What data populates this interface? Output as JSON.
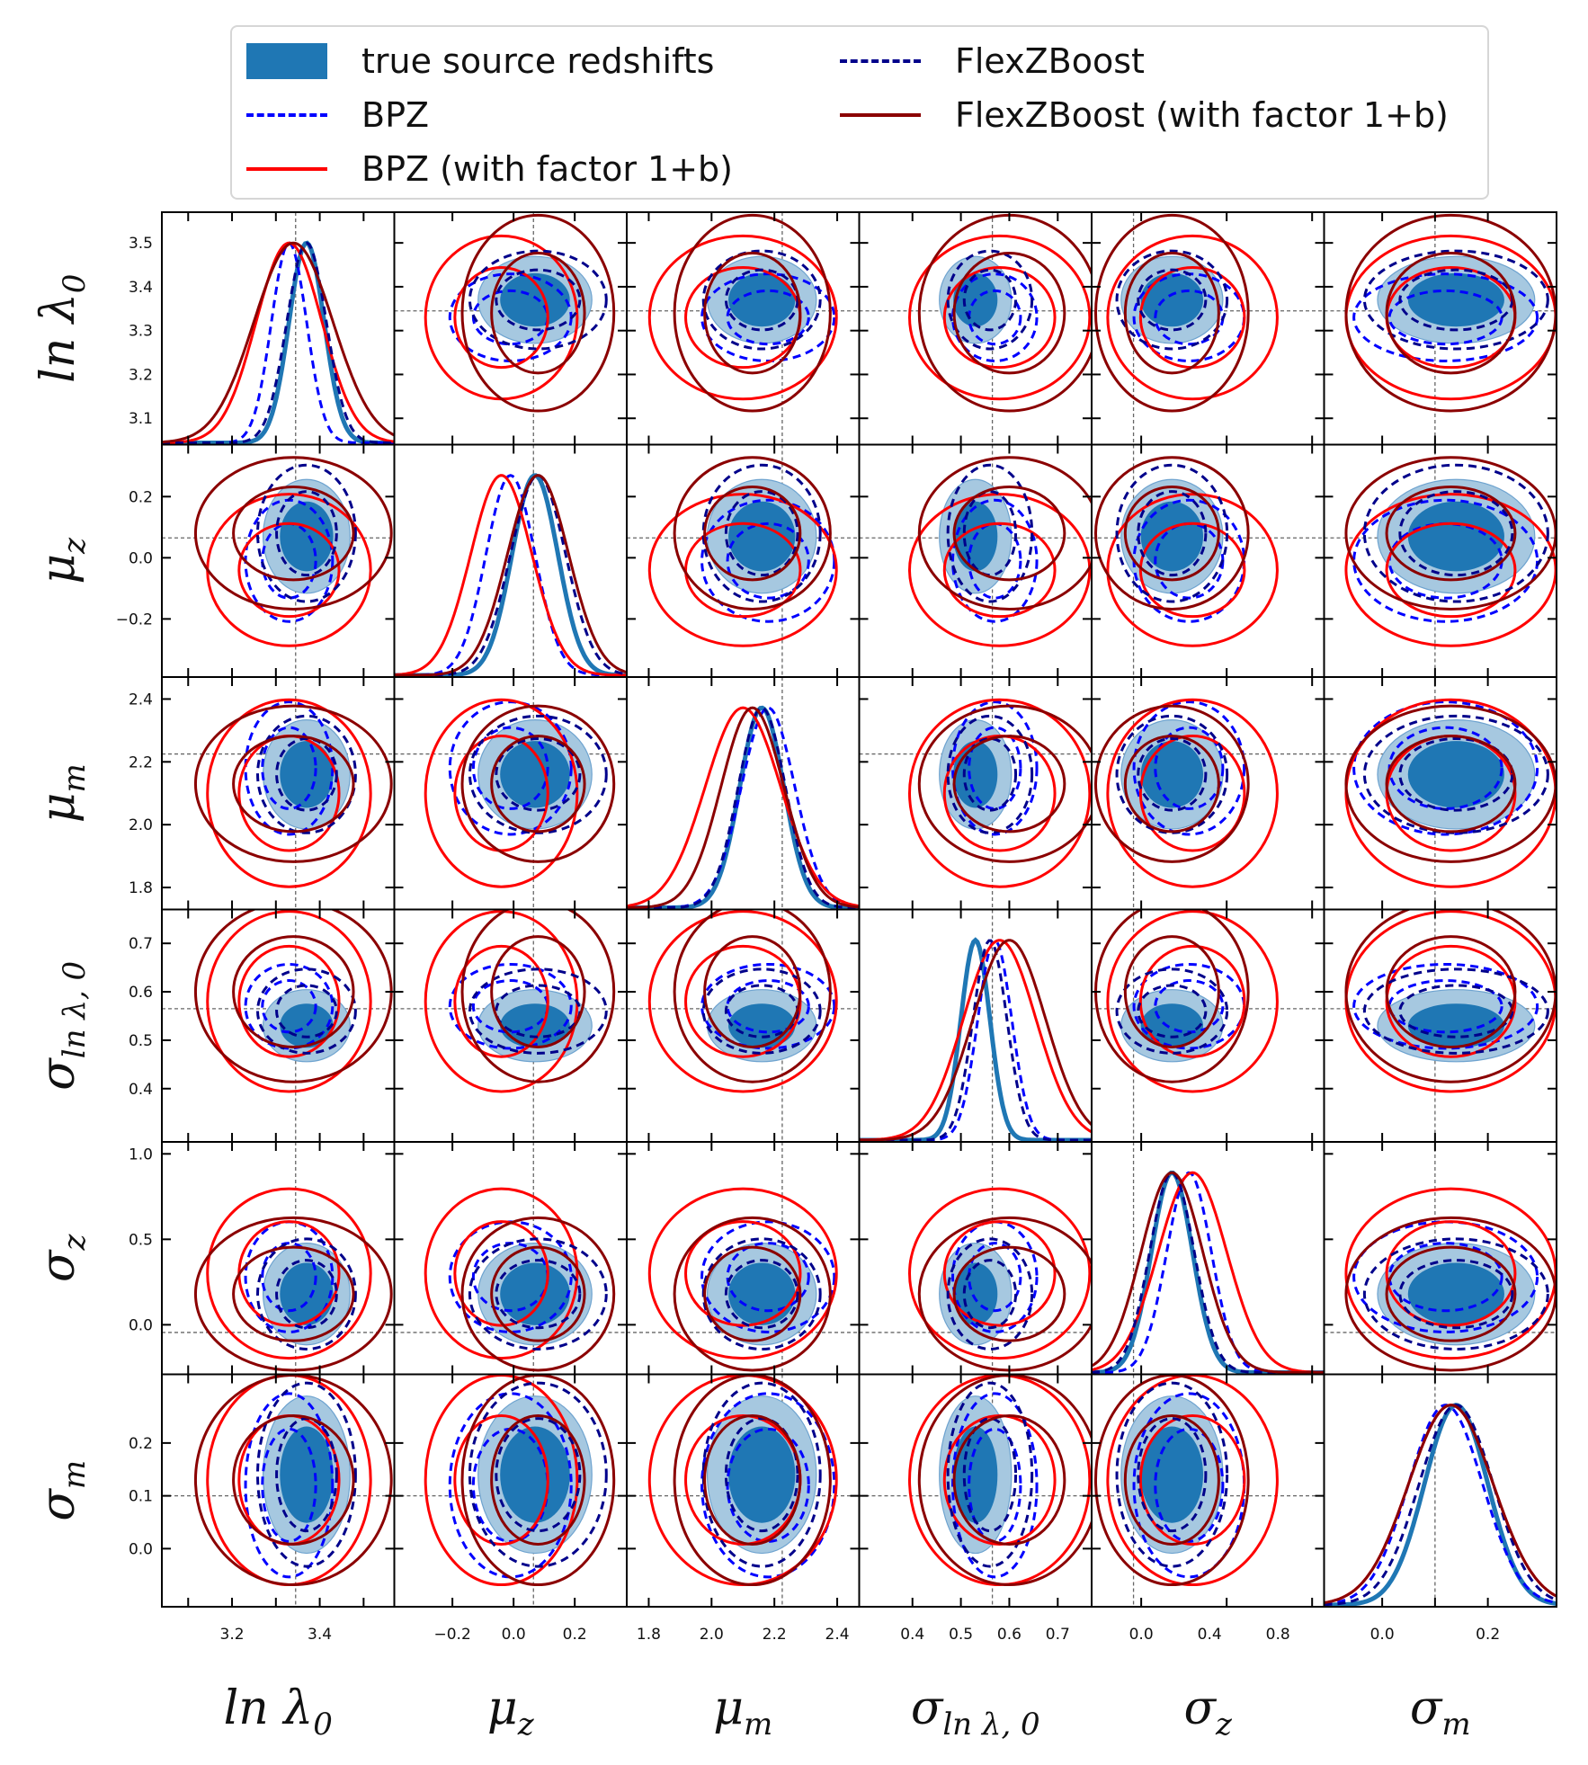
{
  "legend": {
    "items": [
      {
        "label": "true source redshifts",
        "style": "fill",
        "color": "#1f77b4"
      },
      {
        "label": "FlexZBoost",
        "style": "dashed",
        "color": "#00008b"
      },
      {
        "label": "BPZ",
        "style": "dashed",
        "color": "#0000ff"
      },
      {
        "label": "FlexZBoost (with factor 1+b)",
        "style": "solid",
        "color": "#8b0000"
      },
      {
        "label": "BPZ (with factor 1+b)",
        "style": "solid",
        "color": "#ff0000"
      }
    ]
  },
  "chart_data": {
    "type": "corner",
    "parameters": [
      "ln λ0",
      "μz",
      "μm",
      "σlnλ,0",
      "σz",
      "σm"
    ],
    "axis_labels": [
      {
        "base": "ln λ",
        "sub": "0"
      },
      {
        "base": "μ",
        "sub": "z"
      },
      {
        "base": "μ",
        "sub": "m"
      },
      {
        "base": "σ",
        "sub": "ln λ, 0"
      },
      {
        "base": "σ",
        "sub": "z"
      },
      {
        "base": "σ",
        "sub": "m"
      }
    ],
    "ranges": [
      [
        3.04,
        3.57
      ],
      [
        -0.39,
        0.37
      ],
      [
        1.73,
        2.47
      ],
      [
        0.29,
        0.77
      ],
      [
        -0.29,
        1.07
      ],
      [
        -0.11,
        0.33
      ]
    ],
    "ticks": [
      [
        3.1,
        3.2,
        3.3,
        3.4,
        3.5
      ],
      [
        -0.2,
        0.0,
        0.2
      ],
      [
        1.8,
        2.0,
        2.2,
        2.4
      ],
      [
        0.4,
        0.5,
        0.6,
        0.7
      ],
      [
        0.0,
        0.5,
        1.0
      ],
      [
        0.0,
        0.1,
        0.2
      ]
    ],
    "xticks": [
      [
        3.2,
        3.4
      ],
      [
        -0.2,
        0.0,
        0.2
      ],
      [
        1.8,
        2.0,
        2.2,
        2.4
      ],
      [
        0.4,
        0.5,
        0.6,
        0.7
      ],
      [
        0.0,
        0.4,
        0.8
      ],
      [
        0.0,
        0.2
      ]
    ],
    "truth": [
      3.345,
      0.065,
      2.225,
      0.565,
      -0.045,
      0.1
    ],
    "series": [
      {
        "name": "true source redshifts",
        "style": "fill",
        "color": "#1f77b4",
        "mean": [
          3.37,
          0.07,
          2.16,
          0.53,
          0.18,
          0.14
        ],
        "sd": [
          0.04,
          0.075,
          0.07,
          0.03,
          0.12,
          0.06
        ],
        "show_contours": true
      },
      {
        "name": "BPZ",
        "style": "dashed",
        "color": "#0000ff",
        "mean": [
          3.33,
          -0.01,
          2.18,
          0.57,
          0.28,
          0.12
        ],
        "sd": [
          0.04,
          0.08,
          0.085,
          0.035,
          0.13,
          0.07
        ],
        "show_contours": true
      },
      {
        "name": "BPZ (with factor 1+b)",
        "style": "solid",
        "color": "#ff0000",
        "mean": [
          3.33,
          -0.04,
          2.1,
          0.58,
          0.3,
          0.13
        ],
        "sd": [
          0.075,
          0.1,
          0.12,
          0.075,
          0.2,
          0.08
        ],
        "show_contours": true
      },
      {
        "name": "FlexZBoost",
        "style": "dashed",
        "color": "#00008b",
        "mean": [
          3.37,
          0.08,
          2.16,
          0.56,
          0.18,
          0.14
        ],
        "sd": [
          0.045,
          0.09,
          0.075,
          0.035,
          0.13,
          0.07
        ],
        "show_contours": true
      },
      {
        "name": "FlexZBoost (with factor 1+b)",
        "style": "solid",
        "color": "#8b0000",
        "mean": [
          3.34,
          0.08,
          2.13,
          0.6,
          0.18,
          0.13
        ],
        "sd": [
          0.09,
          0.1,
          0.1,
          0.075,
          0.18,
          0.08
        ],
        "show_contours": true
      }
    ]
  }
}
